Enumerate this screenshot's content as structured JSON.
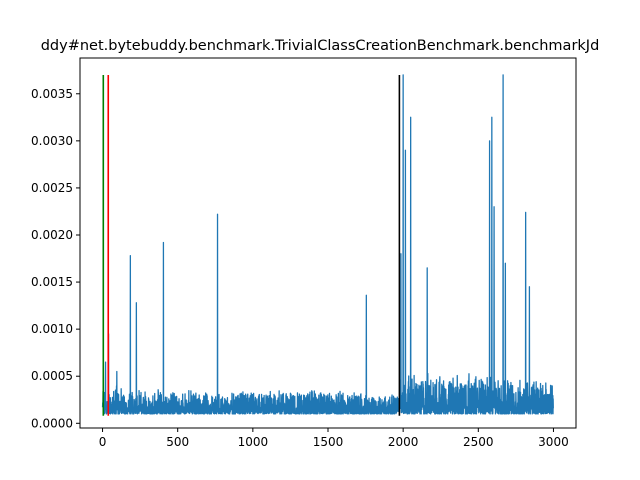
{
  "chart_data": {
    "type": "line",
    "title": "ddy#net.bytebuddy.benchmark.TrivialClassCreationBenchmark.benchmarkJd",
    "xlabel": "",
    "ylabel": "",
    "xlim": [
      -150,
      3150
    ],
    "ylim": [
      -5e-05,
      0.00388
    ],
    "grid": false,
    "x_ticks": [
      0,
      500,
      1000,
      1500,
      2000,
      2500,
      3000
    ],
    "x_tick_labels": [
      "0",
      "500",
      "1000",
      "1500",
      "2000",
      "2500",
      "3000"
    ],
    "y_ticks": [
      0.0,
      0.0005,
      0.001,
      0.0015,
      0.002,
      0.0025,
      0.003,
      0.0035
    ],
    "y_tick_labels": [
      "0.0000",
      "0.0005",
      "0.0010",
      "0.0015",
      "0.0020",
      "0.0025",
      "0.0030",
      "0.0035"
    ],
    "series": [
      {
        "color": "#1f77b4",
        "x_range": [
          0,
          3000
        ],
        "n_points": 3000,
        "baseline_approx": 0.0001,
        "segments": [
          {
            "x": [
              0,
              160
            ],
            "level": 0.00018,
            "spread": 0.00025
          },
          {
            "x": [
              160,
              1760
            ],
            "level": 0.00014,
            "spread": 0.00022
          },
          {
            "x": [
              1760,
              1975
            ],
            "level": 0.00013,
            "spread": 0.00018
          },
          {
            "x": [
              1975,
              3000
            ],
            "level": 0.00018,
            "spread": 0.00036
          }
        ],
        "spikes": [
          {
            "x": 5,
            "y": 0.0008
          },
          {
            "x": 20,
            "y": 0.00065
          },
          {
            "x": 40,
            "y": 0.00095
          },
          {
            "x": 95,
            "y": 0.00055
          },
          {
            "x": 185,
            "y": 0.00178
          },
          {
            "x": 225,
            "y": 0.00128
          },
          {
            "x": 405,
            "y": 0.00192
          },
          {
            "x": 765,
            "y": 0.00222
          },
          {
            "x": 1755,
            "y": 0.00136
          },
          {
            "x": 1985,
            "y": 0.0018
          },
          {
            "x": 2000,
            "y": 0.0037
          },
          {
            "x": 2015,
            "y": 0.0029
          },
          {
            "x": 2050,
            "y": 0.00325
          },
          {
            "x": 2160,
            "y": 0.00165
          },
          {
            "x": 2575,
            "y": 0.003
          },
          {
            "x": 2590,
            "y": 0.00325
          },
          {
            "x": 2605,
            "y": 0.0023
          },
          {
            "x": 2665,
            "y": 0.0037
          },
          {
            "x": 2680,
            "y": 0.0017
          },
          {
            "x": 2815,
            "y": 0.00224
          },
          {
            "x": 2840,
            "y": 0.00145
          }
        ]
      }
    ],
    "vertical_lines": [
      {
        "x": 5,
        "ymin": 8e-05,
        "ymax": 0.0037,
        "color": "#008000"
      },
      {
        "x": 38,
        "ymin": 8e-05,
        "ymax": 0.0037,
        "color": "#ff0000"
      },
      {
        "x": 1975,
        "ymin": 8e-05,
        "ymax": 0.0037,
        "color": "#000000"
      }
    ]
  }
}
